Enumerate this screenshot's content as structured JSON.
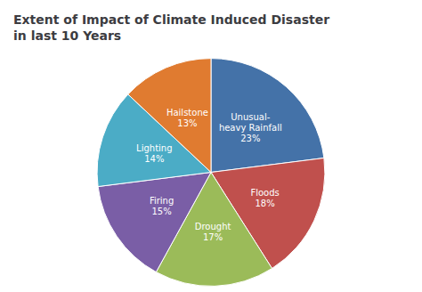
{
  "chart_data": {
    "type": "pie",
    "title": "Extent of Impact of Climate Induced Disaster\nin last 10 Years",
    "categories": [
      "Unusual-\nheavy Rainfall\n23%",
      "Floods\n18%",
      "Drought\n17%",
      "Firing\n15%",
      "Lighting\n14%",
      "Hailstone\n13%"
    ],
    "values": [
      23,
      18,
      17,
      15,
      14,
      13
    ],
    "colors": [
      "#4472a8",
      "#c0504d",
      "#9bbb59",
      "#7a5ea6",
      "#4bacc6",
      "#e07b30"
    ]
  }
}
